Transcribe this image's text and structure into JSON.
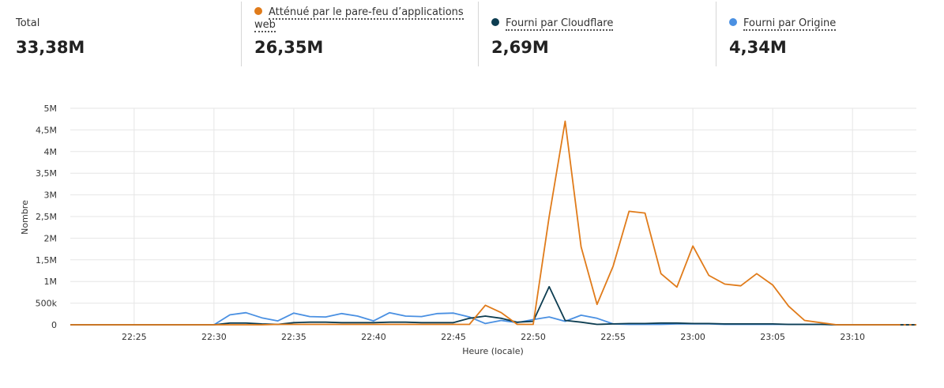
{
  "summary": {
    "total": {
      "label": "Total",
      "value": "33,38M"
    },
    "waf": {
      "label": "Atténué par le pare-feu d’applications web",
      "value": "26,35M",
      "color": "#e07b1a"
    },
    "cloudflare": {
      "label": "Fourni par Cloudflare",
      "value": "2,69M",
      "color": "#0d3d51"
    },
    "origin": {
      "label": "Fourni par Origine",
      "value": "4,34M",
      "color": "#4a90e2"
    }
  },
  "chart_data": {
    "type": "line",
    "xlabel": "Heure (locale)",
    "ylabel": "Nombre",
    "x_ticks": [
      "22:25",
      "22:30",
      "22:35",
      "22:40",
      "22:45",
      "22:50",
      "22:55",
      "23:00",
      "23:05",
      "23:10"
    ],
    "y_ticks": [
      "0",
      "500k",
      "1M",
      "1,5M",
      "2M",
      "2,5M",
      "3M",
      "3,5M",
      "4M",
      "4,5M",
      "5M"
    ],
    "ylim": [
      0,
      5000000
    ],
    "x_range_minutes": [
      "22:21",
      "23:14"
    ],
    "grid": true,
    "x": [
      "22:21",
      "22:22",
      "22:23",
      "22:24",
      "22:25",
      "22:26",
      "22:27",
      "22:28",
      "22:29",
      "22:30",
      "22:31",
      "22:32",
      "22:33",
      "22:34",
      "22:35",
      "22:36",
      "22:37",
      "22:38",
      "22:39",
      "22:40",
      "22:41",
      "22:42",
      "22:43",
      "22:44",
      "22:45",
      "22:46",
      "22:47",
      "22:48",
      "22:49",
      "22:50",
      "22:51",
      "22:52",
      "22:53",
      "22:54",
      "22:55",
      "22:56",
      "22:57",
      "22:58",
      "22:59",
      "23:00",
      "23:01",
      "23:02",
      "23:03",
      "23:04",
      "23:05",
      "23:06",
      "23:07",
      "23:08",
      "23:09",
      "23:10",
      "23:11",
      "23:12",
      "23:13",
      "23:14"
    ],
    "series": [
      {
        "name": "Atténué par le pare-feu d’applications web",
        "color": "#e07b1a",
        "values": [
          0,
          0,
          0,
          0,
          0,
          0,
          0,
          0,
          0,
          0,
          0,
          0,
          0,
          10000,
          10000,
          10000,
          10000,
          10000,
          10000,
          10000,
          10000,
          10000,
          10000,
          10000,
          10000,
          10000,
          450000,
          280000,
          10000,
          10000,
          2500000,
          4700000,
          1800000,
          470000,
          1350000,
          2620000,
          2580000,
          1180000,
          870000,
          1820000,
          1140000,
          940000,
          900000,
          1180000,
          920000,
          430000,
          100000,
          50000,
          0,
          0,
          0,
          0,
          0,
          0
        ]
      },
      {
        "name": "Fourni par Cloudflare",
        "color": "#0d3d51",
        "values": [
          0,
          0,
          0,
          0,
          0,
          0,
          0,
          0,
          0,
          0,
          40000,
          40000,
          20000,
          10000,
          50000,
          60000,
          60000,
          50000,
          50000,
          50000,
          60000,
          60000,
          50000,
          50000,
          50000,
          150000,
          200000,
          150000,
          60000,
          80000,
          880000,
          100000,
          60000,
          10000,
          20000,
          30000,
          30000,
          40000,
          40000,
          30000,
          30000,
          20000,
          20000,
          20000,
          20000,
          10000,
          10000,
          10000,
          0,
          0,
          0,
          0,
          0,
          0
        ]
      },
      {
        "name": "Fourni par Origine",
        "color": "#4a90e2",
        "values": [
          0,
          0,
          0,
          0,
          0,
          0,
          0,
          0,
          0,
          0,
          230000,
          280000,
          160000,
          90000,
          270000,
          190000,
          180000,
          260000,
          200000,
          90000,
          280000,
          200000,
          190000,
          260000,
          270000,
          180000,
          30000,
          100000,
          50000,
          120000,
          180000,
          80000,
          220000,
          150000,
          20000,
          10000,
          10000,
          10000,
          20000,
          20000,
          20000,
          10000,
          10000,
          10000,
          10000,
          10000,
          10000,
          10000,
          0,
          0,
          0,
          0,
          0,
          0
        ]
      }
    ]
  }
}
